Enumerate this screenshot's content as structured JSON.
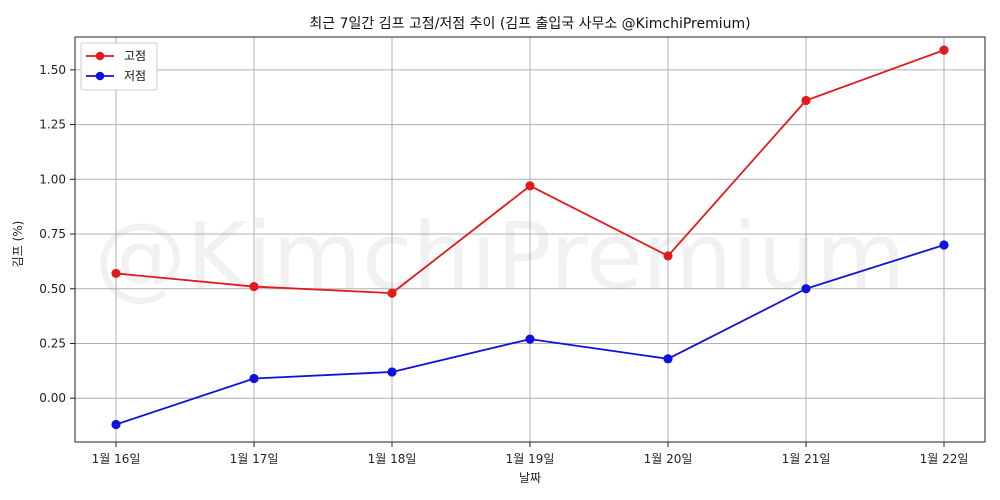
{
  "chart_data": {
    "type": "line",
    "title": "최근 7일간 김프 고점/저점 추이 (김프 출입국 사무소 @KimchiPremium)",
    "xlabel": "날짜",
    "ylabel": "김프 (%)",
    "categories": [
      "1월 16일",
      "1월 17일",
      "1월 18일",
      "1월 19일",
      "1월 20일",
      "1월 21일",
      "1월 22일"
    ],
    "series": [
      {
        "name": "고점",
        "color": "#e31a1c",
        "values": [
          0.57,
          0.51,
          0.48,
          0.97,
          0.65,
          1.36,
          1.59
        ]
      },
      {
        "name": "저점",
        "color": "#1010e0",
        "values": [
          -0.12,
          0.09,
          0.12,
          0.27,
          0.18,
          0.5,
          0.7
        ]
      }
    ],
    "ylim": [
      -0.2,
      1.65
    ],
    "yticks": [
      "0.00",
      "0.25",
      "0.50",
      "0.75",
      "1.00",
      "1.25",
      "1.50"
    ],
    "grid": true,
    "legend_position": "top-left",
    "watermark": "@KimchiPremium"
  }
}
